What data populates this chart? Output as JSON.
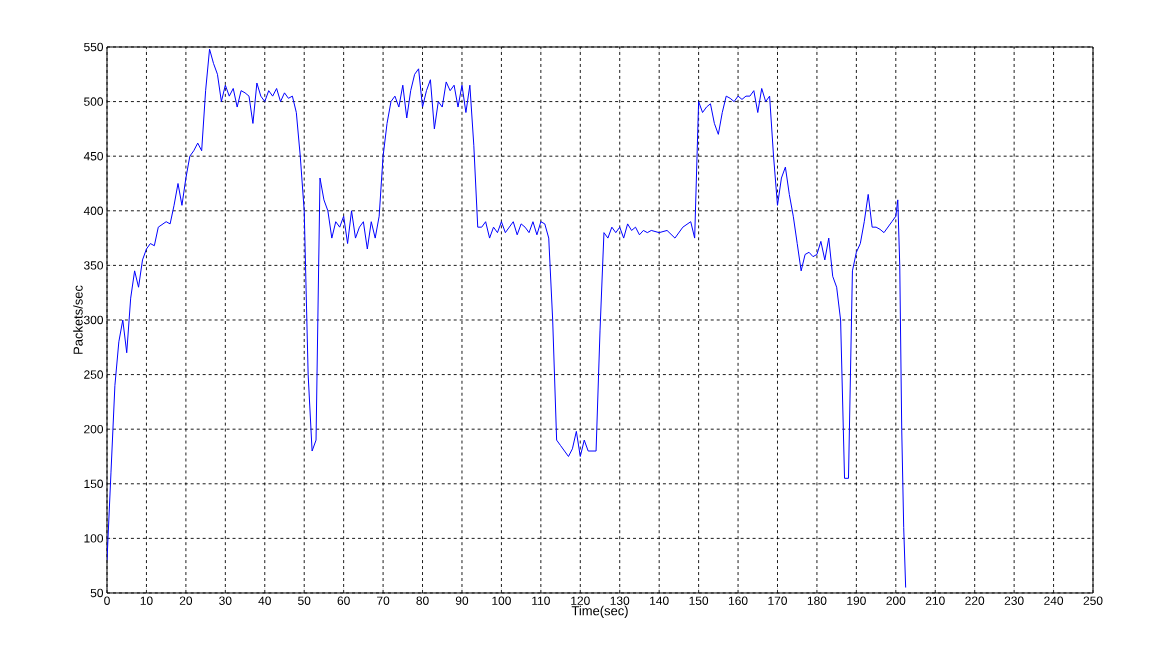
{
  "chart_data": {
    "type": "line",
    "xlabel": "Time(sec)",
    "ylabel": "Packets/sec",
    "xlim": [
      0,
      250
    ],
    "ylim": [
      50,
      550
    ],
    "xticks": [
      0,
      10,
      20,
      30,
      40,
      50,
      60,
      70,
      80,
      90,
      100,
      110,
      120,
      130,
      140,
      150,
      160,
      170,
      180,
      190,
      200,
      210,
      220,
      230,
      240,
      250
    ],
    "yticks": [
      50,
      100,
      150,
      200,
      250,
      300,
      350,
      400,
      450,
      500,
      550
    ],
    "grid": true,
    "line_style": "solid",
    "series": [
      {
        "color": "#0000ff",
        "x": [
          0,
          1,
          2,
          3,
          4,
          5,
          6,
          7,
          8,
          9,
          10,
          11,
          12,
          13,
          15,
          16,
          17,
          18,
          19,
          20,
          21,
          22,
          23,
          24,
          25,
          26,
          27,
          28,
          29,
          30,
          31,
          32,
          33,
          34,
          35,
          36,
          37,
          38,
          39,
          40,
          41,
          42,
          43,
          44,
          45,
          46,
          47,
          48,
          49,
          50,
          51,
          52,
          53,
          54,
          55,
          56,
          57,
          58,
          59,
          60,
          61,
          62,
          63,
          64,
          65,
          66,
          67,
          68,
          69,
          70,
          71,
          72,
          73,
          74,
          75,
          76,
          77,
          78,
          79,
          80,
          81,
          82,
          83,
          84,
          85,
          86,
          87,
          88,
          89,
          90,
          91,
          92,
          93,
          94,
          95,
          96,
          97,
          98,
          99,
          100,
          101,
          102,
          103,
          104,
          105,
          106,
          107,
          108,
          109,
          110,
          111,
          112,
          113,
          114,
          115,
          116,
          117,
          118,
          119,
          120,
          121,
          122,
          123,
          124,
          125,
          126,
          127,
          128,
          129,
          130,
          131,
          132,
          133,
          134,
          135,
          136,
          137,
          138,
          140,
          142,
          144,
          146,
          148,
          149,
          150,
          151,
          152,
          153,
          154,
          155,
          156,
          157,
          158,
          159,
          160,
          161,
          162,
          163,
          164,
          165,
          166,
          167,
          168,
          169,
          170,
          171,
          172,
          173,
          174,
          175,
          176,
          177,
          178,
          179,
          180,
          181,
          182,
          183,
          184,
          185,
          186,
          187,
          188,
          189,
          190,
          191,
          192,
          193,
          194,
          195,
          196,
          197,
          198,
          199,
          200,
          200.5,
          201,
          201.5,
          202,
          202.5
        ],
        "values": [
          80,
          160,
          240,
          280,
          300,
          270,
          320,
          345,
          330,
          355,
          365,
          370,
          368,
          385,
          390,
          388,
          405,
          425,
          405,
          430,
          450,
          455,
          462,
          455,
          510,
          548,
          535,
          525,
          500,
          515,
          505,
          512,
          495,
          510,
          508,
          505,
          480,
          517,
          505,
          500,
          510,
          505,
          512,
          500,
          508,
          503,
          505,
          490,
          450,
          400,
          250,
          180,
          190,
          430,
          410,
          400,
          375,
          390,
          385,
          395,
          370,
          400,
          375,
          385,
          390,
          365,
          390,
          375,
          395,
          450,
          480,
          500,
          505,
          495,
          515,
          485,
          510,
          525,
          530,
          495,
          510,
          520,
          475,
          500,
          495,
          518,
          510,
          515,
          495,
          515,
          490,
          515,
          460,
          385,
          385,
          390,
          375,
          385,
          380,
          390,
          380,
          385,
          390,
          378,
          388,
          385,
          380,
          390,
          378,
          390,
          388,
          375,
          300,
          190,
          185,
          180,
          175,
          182,
          198,
          175,
          190,
          180,
          180,
          180,
          290,
          380,
          375,
          385,
          380,
          385,
          375,
          388,
          382,
          385,
          378,
          382,
          380,
          382,
          380,
          382,
          375,
          385,
          390,
          375,
          500,
          490,
          495,
          498,
          480,
          470,
          490,
          505,
          503,
          500,
          505,
          502,
          505,
          505,
          510,
          490,
          512,
          500,
          505,
          450,
          405,
          430,
          440,
          415,
          395,
          370,
          345,
          360,
          362,
          358,
          360,
          372,
          355,
          375,
          340,
          330,
          300,
          155,
          155,
          345,
          362,
          370,
          390,
          415,
          385,
          385,
          383,
          380,
          385,
          390,
          395,
          410,
          350,
          200,
          110,
          55
        ]
      }
    ]
  }
}
